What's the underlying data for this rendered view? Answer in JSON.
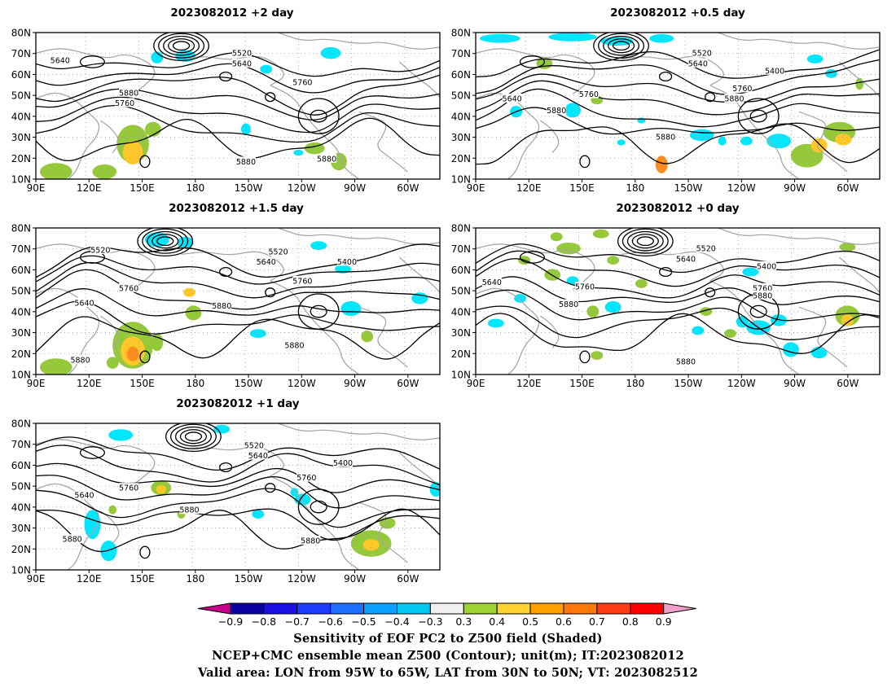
{
  "panels": [
    {
      "title": "2023082012  +2 day",
      "contour_labels": [
        "5640",
        "5520",
        "5640",
        "5760",
        "5880",
        "5760",
        "5880",
        "5880"
      ]
    },
    {
      "title": "2023082012  +0.5 day",
      "contour_labels": [
        "5520",
        "5640",
        "5400",
        "5640",
        "5760",
        "5760",
        "5880",
        "5880",
        "5880"
      ]
    },
    {
      "title": "2023082012  +1.5 day",
      "contour_labels": [
        "5520",
        "5520",
        "5640",
        "5400",
        "5760",
        "5640",
        "5760",
        "5880",
        "5880",
        "5880"
      ]
    },
    {
      "title": "2023082012  +0 day",
      "contour_labels": [
        "5520",
        "5640",
        "5400",
        "5640",
        "5760",
        "5760",
        "5880",
        "5880",
        "5880"
      ]
    },
    {
      "title": "2023082012  +1 day",
      "contour_labels": [
        "5520",
        "5640",
        "5400",
        "5760",
        "5640",
        "5760",
        "5880",
        "5880",
        "5880"
      ]
    }
  ],
  "axes": {
    "lat_ticks": [
      "10N",
      "20N",
      "30N",
      "40N",
      "50N",
      "60N",
      "70N",
      "80N"
    ],
    "lon_ticks": [
      "90E",
      "120E",
      "150E",
      "180",
      "150W",
      "120W",
      "90W",
      "60W"
    ]
  },
  "colorbar": {
    "tick_labels": [
      "-0.9",
      "-0.8",
      "-0.7",
      "-0.6",
      "-0.5",
      "-0.4",
      "-0.3",
      "0.3",
      "0.4",
      "0.5",
      "0.6",
      "0.7",
      "0.8",
      "0.9"
    ],
    "low_extend_color": "#c8008c",
    "high_extend_color": "#f0a0c8",
    "bins": [
      {
        "range": "-0.9 to -0.8",
        "color": "#0a00a0"
      },
      {
        "range": "-0.8 to -0.7",
        "color": "#1a10e6"
      },
      {
        "range": "-0.7 to -0.6",
        "color": "#1e3cff"
      },
      {
        "range": "-0.6 to -0.5",
        "color": "#1e6eff"
      },
      {
        "range": "-0.5 to -0.4",
        "color": "#0aa0ff"
      },
      {
        "range": "-0.4 to -0.3",
        "color": "#00c8f0"
      },
      {
        "range": "-0.3 to 0.3",
        "color": "#f0f0f0"
      },
      {
        "range": "0.3 to 0.4",
        "color": "#a0d232"
      },
      {
        "range": "0.4 to 0.5",
        "color": "#ffd232"
      },
      {
        "range": "0.5 to 0.6",
        "color": "#ffa000"
      },
      {
        "range": "0.6 to 0.7",
        "color": "#ff780a"
      },
      {
        "range": "0.7 to 0.8",
        "color": "#ff3c14"
      },
      {
        "range": "0.8 to 0.9",
        "color": "#ff0000"
      }
    ]
  },
  "captions": {
    "line1": "Sensitivity of EOF PC2 to Z500 field (Shaded)",
    "line2": "NCEP+CMC ensemble mean Z500 (Contour); unit(m); IT:2023082012",
    "line3": "Valid area: LON from 95W to 65W, LAT from 30N to 50N; VT: 2023082512"
  },
  "colors": {
    "coast": "#a8a8a8",
    "contour": "#000000",
    "shade_neg": "#00e6ff",
    "shade_pos_low": "#96c83c",
    "shade_pos_mid": "#ffc828",
    "shade_pos_high": "#ff8c1e"
  }
}
